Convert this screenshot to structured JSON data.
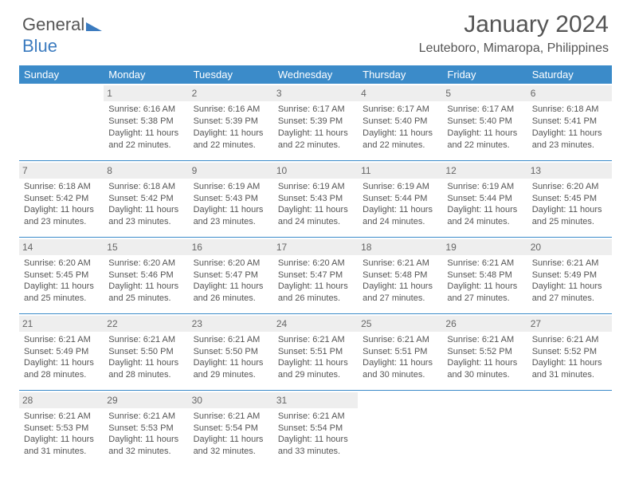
{
  "logo": {
    "word1": "General",
    "word2": "Blue"
  },
  "title": "January 2024",
  "subtitle": "Leuteboro, Mimaropa, Philippines",
  "colors": {
    "header_bg": "#3b8bc9",
    "header_text": "#ffffff",
    "daynum_bg": "#eeeeee",
    "rule": "#3b8bc9",
    "text": "#555555",
    "logo_blue": "#3b7bbf",
    "background": "#ffffff"
  },
  "calendar": {
    "day_headers": [
      "Sunday",
      "Monday",
      "Tuesday",
      "Wednesday",
      "Thursday",
      "Friday",
      "Saturday"
    ],
    "column_count": 7,
    "weeks": [
      [
        null,
        {
          "n": "1",
          "sr": "Sunrise: 6:16 AM",
          "ss": "Sunset: 5:38 PM",
          "d1": "Daylight: 11 hours",
          "d2": "and 22 minutes."
        },
        {
          "n": "2",
          "sr": "Sunrise: 6:16 AM",
          "ss": "Sunset: 5:39 PM",
          "d1": "Daylight: 11 hours",
          "d2": "and 22 minutes."
        },
        {
          "n": "3",
          "sr": "Sunrise: 6:17 AM",
          "ss": "Sunset: 5:39 PM",
          "d1": "Daylight: 11 hours",
          "d2": "and 22 minutes."
        },
        {
          "n": "4",
          "sr": "Sunrise: 6:17 AM",
          "ss": "Sunset: 5:40 PM",
          "d1": "Daylight: 11 hours",
          "d2": "and 22 minutes."
        },
        {
          "n": "5",
          "sr": "Sunrise: 6:17 AM",
          "ss": "Sunset: 5:40 PM",
          "d1": "Daylight: 11 hours",
          "d2": "and 22 minutes."
        },
        {
          "n": "6",
          "sr": "Sunrise: 6:18 AM",
          "ss": "Sunset: 5:41 PM",
          "d1": "Daylight: 11 hours",
          "d2": "and 23 minutes."
        }
      ],
      [
        {
          "n": "7",
          "sr": "Sunrise: 6:18 AM",
          "ss": "Sunset: 5:42 PM",
          "d1": "Daylight: 11 hours",
          "d2": "and 23 minutes."
        },
        {
          "n": "8",
          "sr": "Sunrise: 6:18 AM",
          "ss": "Sunset: 5:42 PM",
          "d1": "Daylight: 11 hours",
          "d2": "and 23 minutes."
        },
        {
          "n": "9",
          "sr": "Sunrise: 6:19 AM",
          "ss": "Sunset: 5:43 PM",
          "d1": "Daylight: 11 hours",
          "d2": "and 23 minutes."
        },
        {
          "n": "10",
          "sr": "Sunrise: 6:19 AM",
          "ss": "Sunset: 5:43 PM",
          "d1": "Daylight: 11 hours",
          "d2": "and 24 minutes."
        },
        {
          "n": "11",
          "sr": "Sunrise: 6:19 AM",
          "ss": "Sunset: 5:44 PM",
          "d1": "Daylight: 11 hours",
          "d2": "and 24 minutes."
        },
        {
          "n": "12",
          "sr": "Sunrise: 6:19 AM",
          "ss": "Sunset: 5:44 PM",
          "d1": "Daylight: 11 hours",
          "d2": "and 24 minutes."
        },
        {
          "n": "13",
          "sr": "Sunrise: 6:20 AM",
          "ss": "Sunset: 5:45 PM",
          "d1": "Daylight: 11 hours",
          "d2": "and 25 minutes."
        }
      ],
      [
        {
          "n": "14",
          "sr": "Sunrise: 6:20 AM",
          "ss": "Sunset: 5:45 PM",
          "d1": "Daylight: 11 hours",
          "d2": "and 25 minutes."
        },
        {
          "n": "15",
          "sr": "Sunrise: 6:20 AM",
          "ss": "Sunset: 5:46 PM",
          "d1": "Daylight: 11 hours",
          "d2": "and 25 minutes."
        },
        {
          "n": "16",
          "sr": "Sunrise: 6:20 AM",
          "ss": "Sunset: 5:47 PM",
          "d1": "Daylight: 11 hours",
          "d2": "and 26 minutes."
        },
        {
          "n": "17",
          "sr": "Sunrise: 6:20 AM",
          "ss": "Sunset: 5:47 PM",
          "d1": "Daylight: 11 hours",
          "d2": "and 26 minutes."
        },
        {
          "n": "18",
          "sr": "Sunrise: 6:21 AM",
          "ss": "Sunset: 5:48 PM",
          "d1": "Daylight: 11 hours",
          "d2": "and 27 minutes."
        },
        {
          "n": "19",
          "sr": "Sunrise: 6:21 AM",
          "ss": "Sunset: 5:48 PM",
          "d1": "Daylight: 11 hours",
          "d2": "and 27 minutes."
        },
        {
          "n": "20",
          "sr": "Sunrise: 6:21 AM",
          "ss": "Sunset: 5:49 PM",
          "d1": "Daylight: 11 hours",
          "d2": "and 27 minutes."
        }
      ],
      [
        {
          "n": "21",
          "sr": "Sunrise: 6:21 AM",
          "ss": "Sunset: 5:49 PM",
          "d1": "Daylight: 11 hours",
          "d2": "and 28 minutes."
        },
        {
          "n": "22",
          "sr": "Sunrise: 6:21 AM",
          "ss": "Sunset: 5:50 PM",
          "d1": "Daylight: 11 hours",
          "d2": "and 28 minutes."
        },
        {
          "n": "23",
          "sr": "Sunrise: 6:21 AM",
          "ss": "Sunset: 5:50 PM",
          "d1": "Daylight: 11 hours",
          "d2": "and 29 minutes."
        },
        {
          "n": "24",
          "sr": "Sunrise: 6:21 AM",
          "ss": "Sunset: 5:51 PM",
          "d1": "Daylight: 11 hours",
          "d2": "and 29 minutes."
        },
        {
          "n": "25",
          "sr": "Sunrise: 6:21 AM",
          "ss": "Sunset: 5:51 PM",
          "d1": "Daylight: 11 hours",
          "d2": "and 30 minutes."
        },
        {
          "n": "26",
          "sr": "Sunrise: 6:21 AM",
          "ss": "Sunset: 5:52 PM",
          "d1": "Daylight: 11 hours",
          "d2": "and 30 minutes."
        },
        {
          "n": "27",
          "sr": "Sunrise: 6:21 AM",
          "ss": "Sunset: 5:52 PM",
          "d1": "Daylight: 11 hours",
          "d2": "and 31 minutes."
        }
      ],
      [
        {
          "n": "28",
          "sr": "Sunrise: 6:21 AM",
          "ss": "Sunset: 5:53 PM",
          "d1": "Daylight: 11 hours",
          "d2": "and 31 minutes."
        },
        {
          "n": "29",
          "sr": "Sunrise: 6:21 AM",
          "ss": "Sunset: 5:53 PM",
          "d1": "Daylight: 11 hours",
          "d2": "and 32 minutes."
        },
        {
          "n": "30",
          "sr": "Sunrise: 6:21 AM",
          "ss": "Sunset: 5:54 PM",
          "d1": "Daylight: 11 hours",
          "d2": "and 32 minutes."
        },
        {
          "n": "31",
          "sr": "Sunrise: 6:21 AM",
          "ss": "Sunset: 5:54 PM",
          "d1": "Daylight: 11 hours",
          "d2": "and 33 minutes."
        },
        null,
        null,
        null
      ]
    ]
  }
}
